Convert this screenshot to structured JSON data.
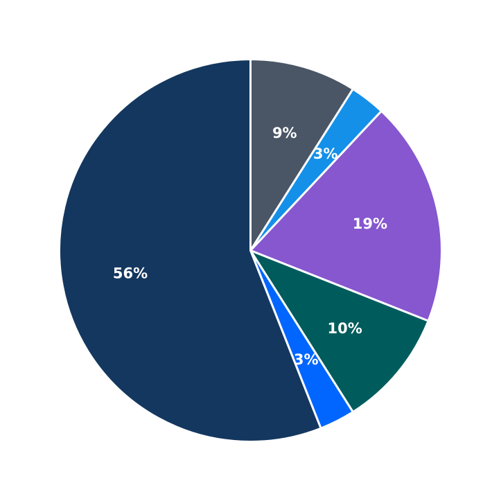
{
  "chart_data": {
    "type": "pie",
    "start_angle": "12 o'clock",
    "direction": "clockwise",
    "slices": [
      {
        "label": "9%",
        "value": 9,
        "color": "#4a5565"
      },
      {
        "label": "3%",
        "value": 3,
        "color": "#1490e8"
      },
      {
        "label": "19%",
        "value": 19,
        "color": "#8657cf"
      },
      {
        "label": "10%",
        "value": 10,
        "color": "#005c5c"
      },
      {
        "label": "3%",
        "value": 3,
        "color": "#0066ff"
      },
      {
        "label": "56%",
        "value": 56,
        "color": "#14375f"
      }
    ],
    "slice_border_color": "#ffffff",
    "legend": "none"
  }
}
